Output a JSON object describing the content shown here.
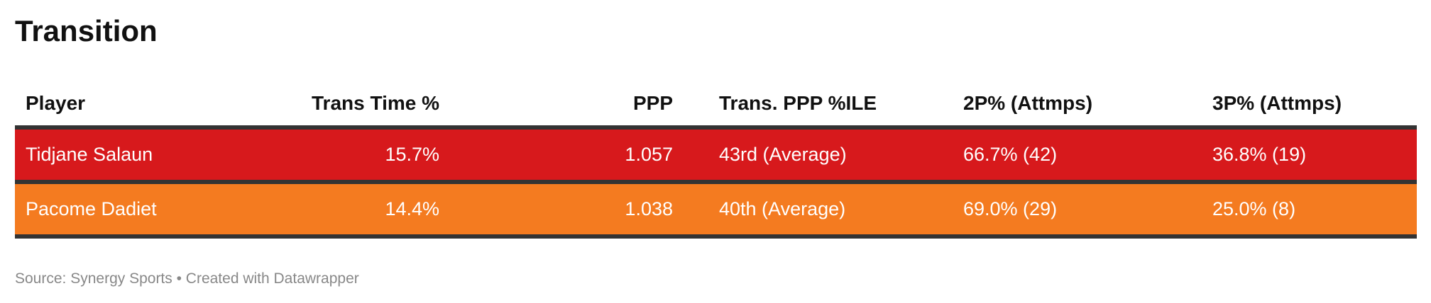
{
  "title": "Transition",
  "table": {
    "header": [
      "Player",
      "Trans Time %",
      "PPP",
      "Trans. PPP %ILE",
      "2P% (Attmps)",
      "3P% (Attmps)"
    ],
    "rows": [
      [
        "Tidjane Salaun",
        "15.7%",
        "1.057",
        "43rd (Average)",
        "66.7% (42)",
        "36.8% (19)"
      ],
      [
        "Pacome Dadiet",
        "14.4%",
        "1.038",
        "40th (Average)",
        "69.0% (29)",
        "25.0% (8)"
      ]
    ]
  },
  "source": "Source: Synergy Sports • Created with Datawrapper"
}
